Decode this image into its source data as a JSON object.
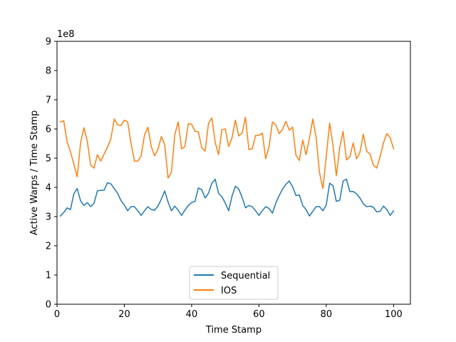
{
  "chart_data": {
    "type": "line",
    "title": "",
    "xlabel": "Time Stamp",
    "ylabel": "Active Warps / Time Stamp",
    "y_offset_label": "1e8",
    "xlim": [
      0,
      105
    ],
    "ylim": [
      0,
      9
    ],
    "y_scale_factor": 100000000,
    "x_ticks": [
      0,
      20,
      40,
      60,
      80,
      100
    ],
    "y_ticks": [
      0,
      1,
      2,
      3,
      4,
      5,
      6,
      7,
      8,
      9
    ],
    "grid": false,
    "legend_position": "bottom-center",
    "x": [
      1,
      2,
      3,
      4,
      5,
      6,
      7,
      8,
      9,
      10,
      11,
      12,
      13,
      14,
      15,
      16,
      17,
      18,
      19,
      20,
      21,
      22,
      23,
      24,
      25,
      26,
      27,
      28,
      29,
      30,
      31,
      32,
      33,
      34,
      35,
      36,
      37,
      38,
      39,
      40,
      41,
      42,
      43,
      44,
      45,
      46,
      47,
      48,
      49,
      50,
      51,
      52,
      53,
      54,
      55,
      56,
      57,
      58,
      59,
      60,
      61,
      62,
      63,
      64,
      65,
      66,
      67,
      68,
      69,
      70,
      71,
      72,
      73,
      74,
      75,
      76,
      77,
      78,
      79,
      80,
      81,
      82,
      83,
      84,
      85,
      86,
      87,
      88,
      89,
      90,
      91,
      92,
      93,
      94,
      95,
      96,
      97,
      98,
      99,
      100
    ],
    "series": [
      {
        "name": "Sequential",
        "color": "#1f77b4",
        "values": [
          3.02,
          3.14,
          3.3,
          3.24,
          3.78,
          3.96,
          3.54,
          3.38,
          3.48,
          3.34,
          3.46,
          3.88,
          3.9,
          3.9,
          4.16,
          4.12,
          3.96,
          3.8,
          3.55,
          3.4,
          3.2,
          3.34,
          3.34,
          3.2,
          3.04,
          3.2,
          3.34,
          3.24,
          3.22,
          3.36,
          3.6,
          3.88,
          3.5,
          3.2,
          3.36,
          3.22,
          3.04,
          3.22,
          3.38,
          3.48,
          3.52,
          3.98,
          3.92,
          3.64,
          3.8,
          4.14,
          4.28,
          3.8,
          3.68,
          3.46,
          3.2,
          3.7,
          4.04,
          3.94,
          3.66,
          3.3,
          3.38,
          3.34,
          3.2,
          3.04,
          3.2,
          3.34,
          3.28,
          3.12,
          3.46,
          3.72,
          3.94,
          4.1,
          4.22,
          4.02,
          3.72,
          3.74,
          3.38,
          3.24,
          3.02,
          3.18,
          3.34,
          3.34,
          3.2,
          3.4,
          4.14,
          4.06,
          3.52,
          3.56,
          4.22,
          4.28,
          3.86,
          3.86,
          3.78,
          3.64,
          3.44,
          3.34,
          3.36,
          3.32,
          3.16,
          3.18,
          3.36,
          3.24,
          3.04,
          3.2
        ]
      },
      {
        "name": "IOS",
        "color": "#ff7f0e",
        "values": [
          6.24,
          6.28,
          5.56,
          5.22,
          4.8,
          4.36,
          5.52,
          6.04,
          5.58,
          4.76,
          4.66,
          5.12,
          4.9,
          5.14,
          5.38,
          5.66,
          6.34,
          6.14,
          6.12,
          6.3,
          6.24,
          5.5,
          4.9,
          4.9,
          5.08,
          5.8,
          6.06,
          5.4,
          5.08,
          5.3,
          5.74,
          5.46,
          4.32,
          4.52,
          5.8,
          6.24,
          5.32,
          5.4,
          6.18,
          6.16,
          5.92,
          5.9,
          5.36,
          5.24,
          6.18,
          6.38,
          5.54,
          5.12,
          5.98,
          6.0,
          5.4,
          5.7,
          6.3,
          5.76,
          5.86,
          6.4,
          5.3,
          5.32,
          5.78,
          5.78,
          5.86,
          4.98,
          5.4,
          6.24,
          6.14,
          5.84,
          5.98,
          6.26,
          5.96,
          6.06,
          5.1,
          4.92,
          5.62,
          5.12,
          5.68,
          6.34,
          5.7,
          4.5,
          3.96,
          5.06,
          6.2,
          5.44,
          4.4,
          5.36,
          5.92,
          4.94,
          5.04,
          5.52,
          4.98,
          5.2,
          5.82,
          5.24,
          5.14,
          4.76,
          4.66,
          5.06,
          5.52,
          5.84,
          5.7,
          5.32
        ]
      }
    ]
  }
}
